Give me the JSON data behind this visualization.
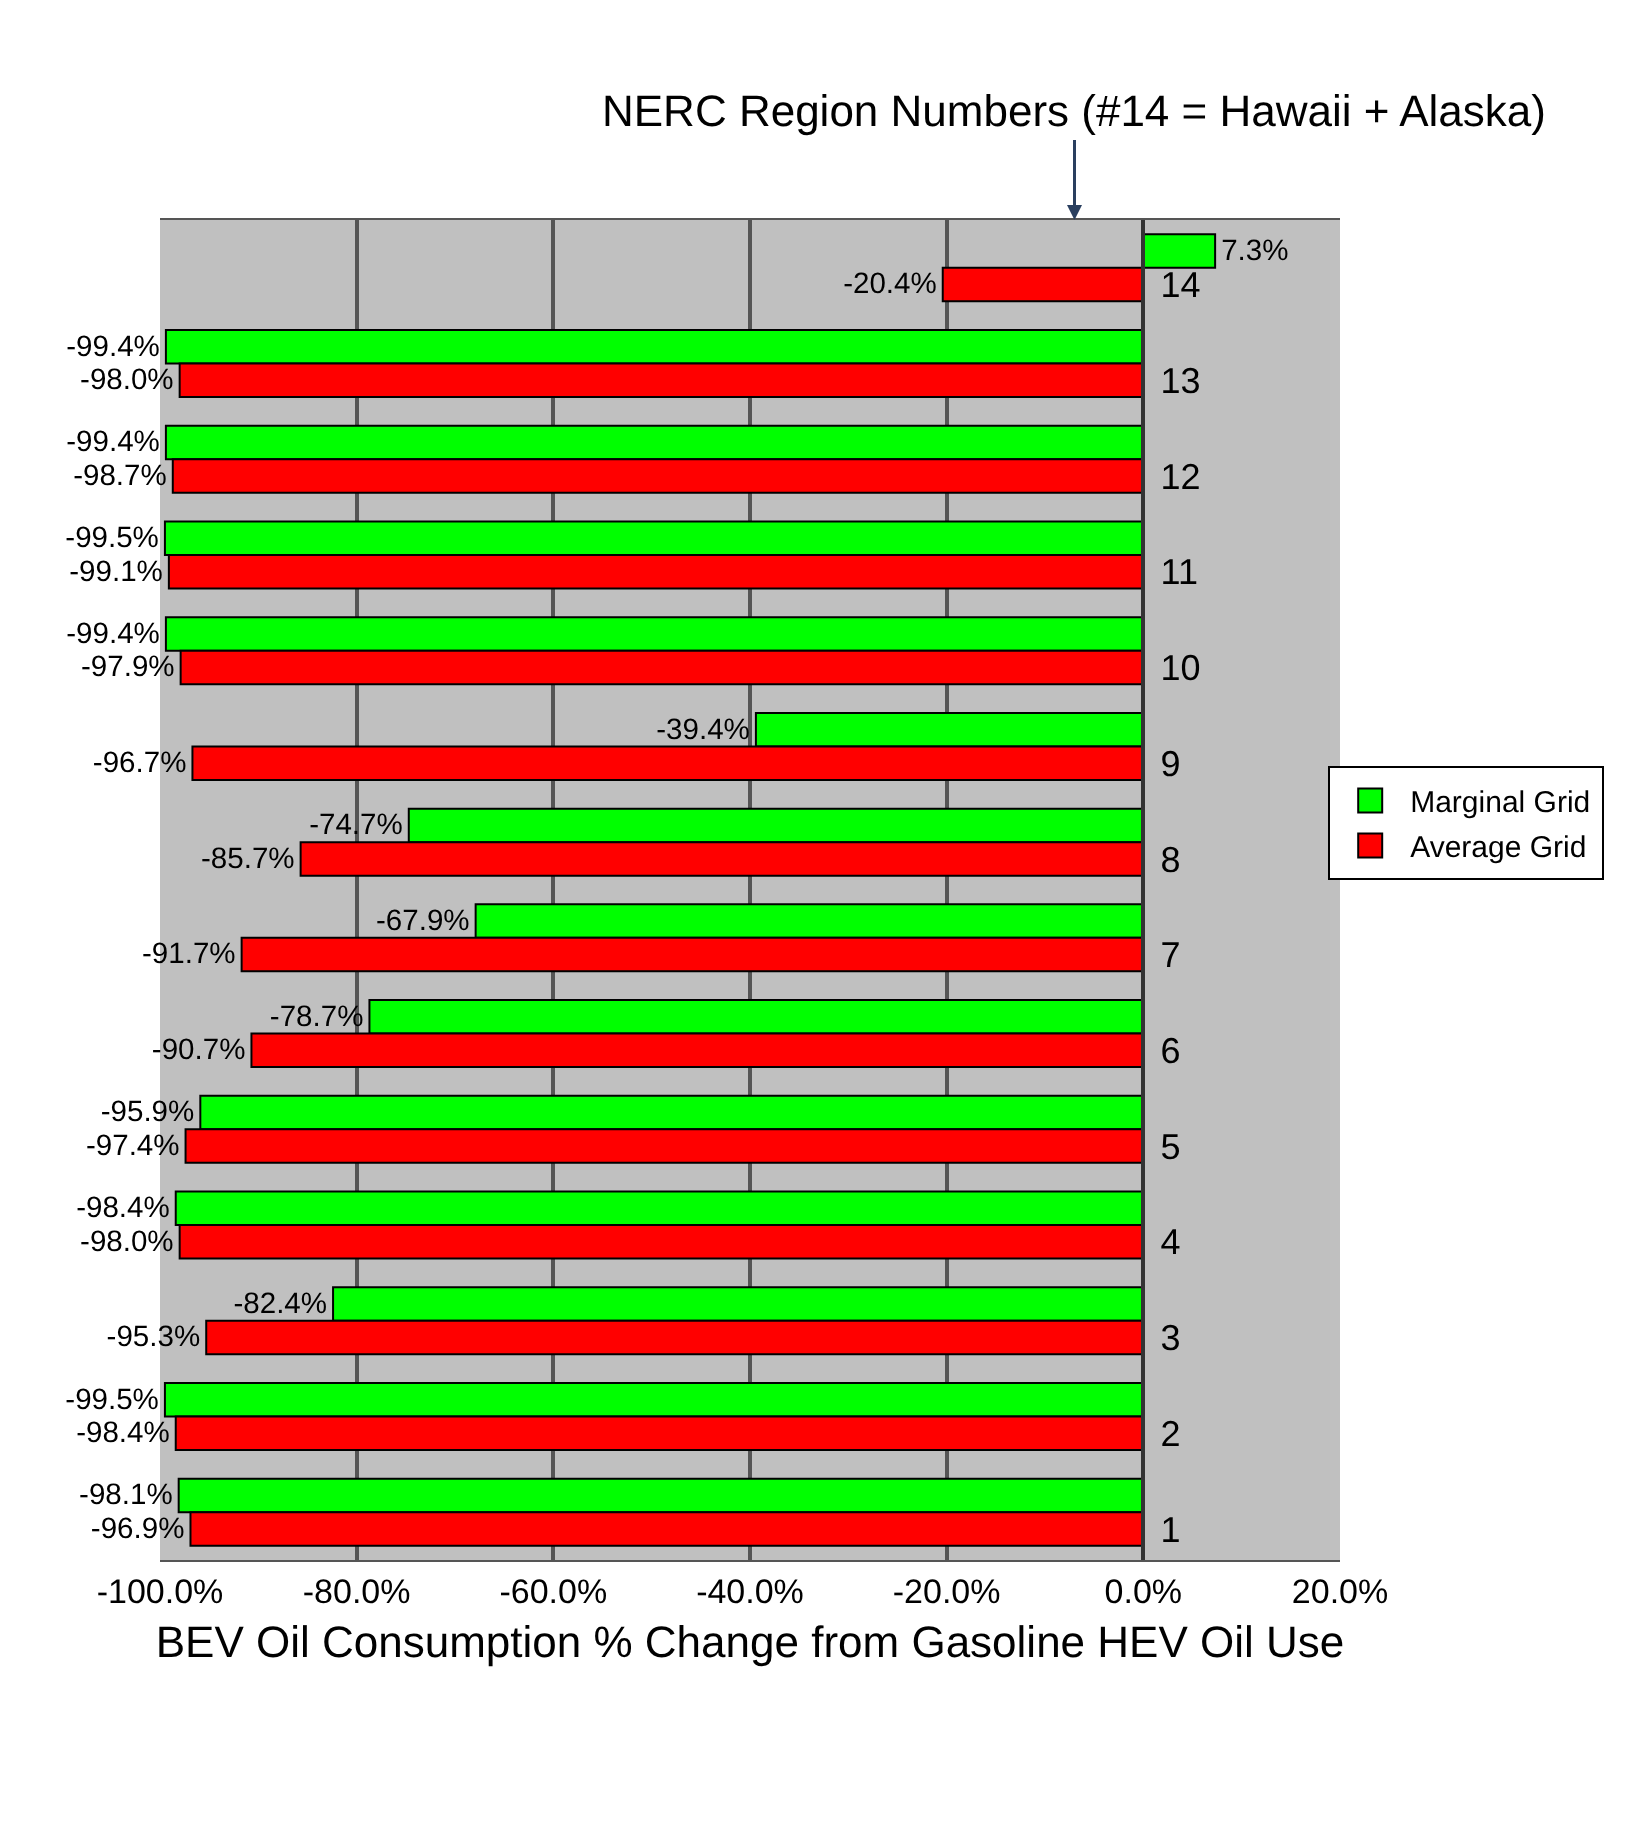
{
  "chart_data": {
    "type": "bar",
    "orientation": "horizontal",
    "ylabel": "NERC Region Numbers (#14 = Hawaii + Alaska)",
    "xlabel": "BEV Oil Consumption % Change from Gasoline HEV Oil Use",
    "categories": [
      "14",
      "13",
      "12",
      "11",
      "10",
      "9",
      "8",
      "7",
      "6",
      "5",
      "4",
      "3",
      "2",
      "1"
    ],
    "series": [
      {
        "name": "Marginal Grid",
        "color": "#00ff00",
        "values": [
          7.3,
          -99.4,
          -99.4,
          -99.5,
          -99.4,
          -39.4,
          -74.7,
          -67.9,
          -78.7,
          -95.9,
          -98.4,
          -82.4,
          -99.5,
          -98.1
        ],
        "value_labels": [
          "7.3%",
          "-99.4%",
          "-99.4%",
          "-99.5%",
          "-99.4%",
          "-39.4%",
          "-74.7%",
          "-67.9%",
          "-78.7%",
          "-95.9%",
          "-98.4%",
          "-82.4%",
          "-99.5%",
          "-98.1%"
        ]
      },
      {
        "name": "Average Grid",
        "color": "#ff0000",
        "values": [
          -20.4,
          -98.0,
          -98.7,
          -99.1,
          -97.9,
          -96.7,
          -85.7,
          -91.7,
          -90.7,
          -97.4,
          -98.0,
          -95.3,
          -98.4,
          -96.9
        ],
        "value_labels": [
          "-20.4%",
          "-98.0%",
          "-98.7%",
          "-99.1%",
          "-97.9%",
          "-96.7%",
          "-85.7%",
          "-91.7%",
          "-90.7%",
          "-97.4%",
          "-98.0%",
          "-95.3%",
          "-98.4%",
          "-96.9%"
        ]
      }
    ],
    "xlim": [
      -100,
      20
    ],
    "xticks": [
      {
        "value": -100,
        "label": "-100.0%"
      },
      {
        "value": -80,
        "label": "-80.0%"
      },
      {
        "value": -60,
        "label": "-60.0%"
      },
      {
        "value": -40,
        "label": "-40.0%"
      },
      {
        "value": -20,
        "label": "-20.0%"
      },
      {
        "value": 0,
        "label": "0.0%"
      },
      {
        "value": 20,
        "label": "20.0%"
      }
    ],
    "grid": "x",
    "legend": "right"
  }
}
